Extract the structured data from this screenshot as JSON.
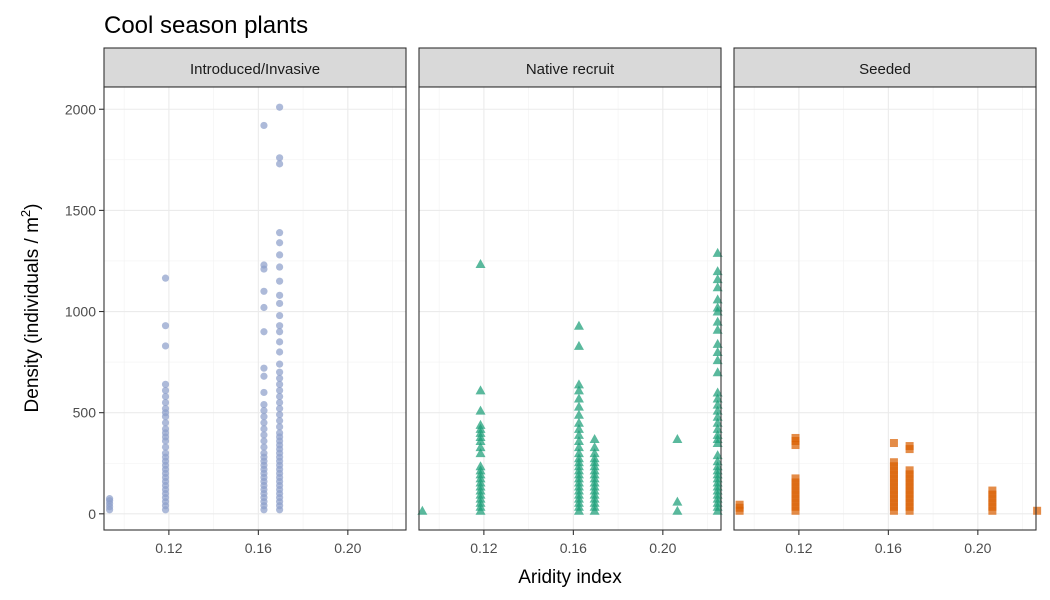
{
  "chart_data": {
    "type": "scatter",
    "title": "Cool season plants",
    "xlabel": "Aridity index",
    "ylabel": "Density (individuals / m",
    "ylabel_superscript": "2",
    "ylabel_close": ")",
    "xlim": [
      0.091,
      0.226
    ],
    "ylim": [
      -80,
      2110
    ],
    "x_ticks": [
      0.12,
      0.16,
      0.2
    ],
    "x_tick_labels": [
      "0.12",
      "0.16",
      "0.20"
    ],
    "y_ticks": [
      0,
      500,
      1000,
      1500,
      2000
    ],
    "y_tick_labels": [
      "0",
      "500",
      "1000",
      "1500",
      "2000"
    ],
    "grid": true,
    "facets": [
      {
        "label": "Introduced/Invasive",
        "color": "#8DA0CB",
        "marker": "circle",
        "points": [
          [
            0.0935,
            20
          ],
          [
            0.0935,
            35
          ],
          [
            0.0935,
            50
          ],
          [
            0.0935,
            65
          ],
          [
            0.0935,
            75
          ],
          [
            0.1185,
            20
          ],
          [
            0.1185,
            40
          ],
          [
            0.1185,
            60
          ],
          [
            0.1185,
            80
          ],
          [
            0.1185,
            100
          ],
          [
            0.1185,
            120
          ],
          [
            0.1185,
            140
          ],
          [
            0.1185,
            160
          ],
          [
            0.1185,
            180
          ],
          [
            0.1185,
            200
          ],
          [
            0.1185,
            220
          ],
          [
            0.1185,
            240
          ],
          [
            0.1185,
            260
          ],
          [
            0.1185,
            280
          ],
          [
            0.1185,
            300
          ],
          [
            0.1185,
            330
          ],
          [
            0.1185,
            360
          ],
          [
            0.1185,
            380
          ],
          [
            0.1185,
            400
          ],
          [
            0.1185,
            420
          ],
          [
            0.1185,
            450
          ],
          [
            0.1185,
            480
          ],
          [
            0.1185,
            500
          ],
          [
            0.1185,
            520
          ],
          [
            0.1185,
            550
          ],
          [
            0.1185,
            580
          ],
          [
            0.1185,
            610
          ],
          [
            0.1185,
            640
          ],
          [
            0.1185,
            830
          ],
          [
            0.1185,
            930
          ],
          [
            0.1185,
            1165
          ],
          [
            0.1625,
            20
          ],
          [
            0.1625,
            40
          ],
          [
            0.1625,
            60
          ],
          [
            0.1625,
            80
          ],
          [
            0.1625,
            100
          ],
          [
            0.1625,
            120
          ],
          [
            0.1625,
            140
          ],
          [
            0.1625,
            160
          ],
          [
            0.1625,
            180
          ],
          [
            0.1625,
            200
          ],
          [
            0.1625,
            220
          ],
          [
            0.1625,
            240
          ],
          [
            0.1625,
            260
          ],
          [
            0.1625,
            280
          ],
          [
            0.1625,
            300
          ],
          [
            0.1625,
            330
          ],
          [
            0.1625,
            360
          ],
          [
            0.1625,
            390
          ],
          [
            0.1625,
            420
          ],
          [
            0.1625,
            450
          ],
          [
            0.1625,
            480
          ],
          [
            0.1625,
            510
          ],
          [
            0.1625,
            540
          ],
          [
            0.1625,
            600
          ],
          [
            0.1625,
            680
          ],
          [
            0.1625,
            720
          ],
          [
            0.1625,
            900
          ],
          [
            0.1625,
            1020
          ],
          [
            0.1625,
            1100
          ],
          [
            0.1625,
            1210
          ],
          [
            0.1625,
            1230
          ],
          [
            0.1625,
            1920
          ],
          [
            0.1695,
            20
          ],
          [
            0.1695,
            40
          ],
          [
            0.1695,
            60
          ],
          [
            0.1695,
            80
          ],
          [
            0.1695,
            100
          ],
          [
            0.1695,
            120
          ],
          [
            0.1695,
            140
          ],
          [
            0.1695,
            160
          ],
          [
            0.1695,
            180
          ],
          [
            0.1695,
            200
          ],
          [
            0.1695,
            220
          ],
          [
            0.1695,
            240
          ],
          [
            0.1695,
            260
          ],
          [
            0.1695,
            280
          ],
          [
            0.1695,
            300
          ],
          [
            0.1695,
            320
          ],
          [
            0.1695,
            340
          ],
          [
            0.1695,
            360
          ],
          [
            0.1695,
            380
          ],
          [
            0.1695,
            400
          ],
          [
            0.1695,
            430
          ],
          [
            0.1695,
            460
          ],
          [
            0.1695,
            490
          ],
          [
            0.1695,
            520
          ],
          [
            0.1695,
            550
          ],
          [
            0.1695,
            580
          ],
          [
            0.1695,
            610
          ],
          [
            0.1695,
            640
          ],
          [
            0.1695,
            670
          ],
          [
            0.1695,
            700
          ],
          [
            0.1695,
            740
          ],
          [
            0.1695,
            800
          ],
          [
            0.1695,
            850
          ],
          [
            0.1695,
            900
          ],
          [
            0.1695,
            930
          ],
          [
            0.1695,
            980
          ],
          [
            0.1695,
            1040
          ],
          [
            0.1695,
            1080
          ],
          [
            0.1695,
            1150
          ],
          [
            0.1695,
            1220
          ],
          [
            0.1695,
            1280
          ],
          [
            0.1695,
            1340
          ],
          [
            0.1695,
            1390
          ],
          [
            0.1695,
            1730
          ],
          [
            0.1695,
            1760
          ],
          [
            0.1695,
            2010
          ]
        ]
      },
      {
        "label": "Native recruit",
        "color": "#1B9E77",
        "marker": "triangle",
        "points": [
          [
            0.0925,
            15
          ],
          [
            0.1185,
            15
          ],
          [
            0.1185,
            35
          ],
          [
            0.1185,
            55
          ],
          [
            0.1185,
            75
          ],
          [
            0.1185,
            95
          ],
          [
            0.1185,
            115
          ],
          [
            0.1185,
            135
          ],
          [
            0.1185,
            155
          ],
          [
            0.1185,
            175
          ],
          [
            0.1185,
            195
          ],
          [
            0.1185,
            215
          ],
          [
            0.1185,
            235
          ],
          [
            0.1185,
            300
          ],
          [
            0.1185,
            330
          ],
          [
            0.1185,
            360
          ],
          [
            0.1185,
            380
          ],
          [
            0.1185,
            400
          ],
          [
            0.1185,
            420
          ],
          [
            0.1185,
            440
          ],
          [
            0.1185,
            510
          ],
          [
            0.1185,
            610
          ],
          [
            0.1185,
            1235
          ],
          [
            0.1625,
            15
          ],
          [
            0.1625,
            35
          ],
          [
            0.1625,
            55
          ],
          [
            0.1625,
            75
          ],
          [
            0.1625,
            95
          ],
          [
            0.1625,
            115
          ],
          [
            0.1625,
            135
          ],
          [
            0.1625,
            155
          ],
          [
            0.1625,
            175
          ],
          [
            0.1625,
            195
          ],
          [
            0.1625,
            215
          ],
          [
            0.1625,
            235
          ],
          [
            0.1625,
            255
          ],
          [
            0.1625,
            275
          ],
          [
            0.1625,
            300
          ],
          [
            0.1625,
            330
          ],
          [
            0.1625,
            360
          ],
          [
            0.1625,
            390
          ],
          [
            0.1625,
            420
          ],
          [
            0.1625,
            450
          ],
          [
            0.1625,
            490
          ],
          [
            0.1625,
            530
          ],
          [
            0.1625,
            570
          ],
          [
            0.1625,
            610
          ],
          [
            0.1625,
            640
          ],
          [
            0.1625,
            830
          ],
          [
            0.1625,
            930
          ],
          [
            0.1695,
            15
          ],
          [
            0.1695,
            35
          ],
          [
            0.1695,
            55
          ],
          [
            0.1695,
            75
          ],
          [
            0.1695,
            95
          ],
          [
            0.1695,
            115
          ],
          [
            0.1695,
            135
          ],
          [
            0.1695,
            155
          ],
          [
            0.1695,
            175
          ],
          [
            0.1695,
            195
          ],
          [
            0.1695,
            215
          ],
          [
            0.1695,
            235
          ],
          [
            0.1695,
            255
          ],
          [
            0.1695,
            275
          ],
          [
            0.1695,
            300
          ],
          [
            0.1695,
            330
          ],
          [
            0.1695,
            370
          ],
          [
            0.2065,
            15
          ],
          [
            0.2065,
            60
          ],
          [
            0.2065,
            370
          ],
          [
            0.2245,
            15
          ],
          [
            0.2245,
            35
          ],
          [
            0.2245,
            55
          ],
          [
            0.2245,
            75
          ],
          [
            0.2245,
            95
          ],
          [
            0.2245,
            115
          ],
          [
            0.2245,
            135
          ],
          [
            0.2245,
            155
          ],
          [
            0.2245,
            175
          ],
          [
            0.2245,
            195
          ],
          [
            0.2245,
            215
          ],
          [
            0.2245,
            235
          ],
          [
            0.2245,
            260
          ],
          [
            0.2245,
            290
          ],
          [
            0.2245,
            350
          ],
          [
            0.2245,
            370
          ],
          [
            0.2245,
            390
          ],
          [
            0.2245,
            420
          ],
          [
            0.2245,
            450
          ],
          [
            0.2245,
            480
          ],
          [
            0.2245,
            510
          ],
          [
            0.2245,
            540
          ],
          [
            0.2245,
            570
          ],
          [
            0.2245,
            600
          ],
          [
            0.2245,
            700
          ],
          [
            0.2245,
            760
          ],
          [
            0.2245,
            800
          ],
          [
            0.2245,
            840
          ],
          [
            0.2245,
            910
          ],
          [
            0.2245,
            950
          ],
          [
            0.2245,
            1000
          ],
          [
            0.2245,
            1020
          ],
          [
            0.2245,
            1060
          ],
          [
            0.2245,
            1120
          ],
          [
            0.2245,
            1160
          ],
          [
            0.2245,
            1200
          ],
          [
            0.2245,
            1290
          ]
        ]
      },
      {
        "label": "Seeded",
        "color": "#D95F02",
        "marker": "square",
        "points": [
          [
            0.0935,
            15
          ],
          [
            0.0935,
            30
          ],
          [
            0.0935,
            45
          ],
          [
            0.1185,
            15
          ],
          [
            0.1185,
            35
          ],
          [
            0.1185,
            55
          ],
          [
            0.1185,
            75
          ],
          [
            0.1185,
            95
          ],
          [
            0.1185,
            115
          ],
          [
            0.1185,
            135
          ],
          [
            0.1185,
            155
          ],
          [
            0.1185,
            175
          ],
          [
            0.1185,
            340
          ],
          [
            0.1185,
            360
          ],
          [
            0.1185,
            375
          ],
          [
            0.1625,
            15
          ],
          [
            0.1625,
            35
          ],
          [
            0.1625,
            55
          ],
          [
            0.1625,
            75
          ],
          [
            0.1625,
            95
          ],
          [
            0.1625,
            115
          ],
          [
            0.1625,
            135
          ],
          [
            0.1625,
            155
          ],
          [
            0.1625,
            175
          ],
          [
            0.1625,
            195
          ],
          [
            0.1625,
            215
          ],
          [
            0.1625,
            235
          ],
          [
            0.1625,
            255
          ],
          [
            0.1625,
            350
          ],
          [
            0.1695,
            15
          ],
          [
            0.1695,
            35
          ],
          [
            0.1695,
            55
          ],
          [
            0.1695,
            75
          ],
          [
            0.1695,
            95
          ],
          [
            0.1695,
            115
          ],
          [
            0.1695,
            135
          ],
          [
            0.1695,
            155
          ],
          [
            0.1695,
            175
          ],
          [
            0.1695,
            195
          ],
          [
            0.1695,
            215
          ],
          [
            0.1695,
            320
          ],
          [
            0.1695,
            335
          ],
          [
            0.2065,
            15
          ],
          [
            0.2065,
            35
          ],
          [
            0.2065,
            55
          ],
          [
            0.2065,
            75
          ],
          [
            0.2065,
            95
          ],
          [
            0.2065,
            115
          ],
          [
            0.2265,
            15
          ]
        ]
      }
    ]
  }
}
